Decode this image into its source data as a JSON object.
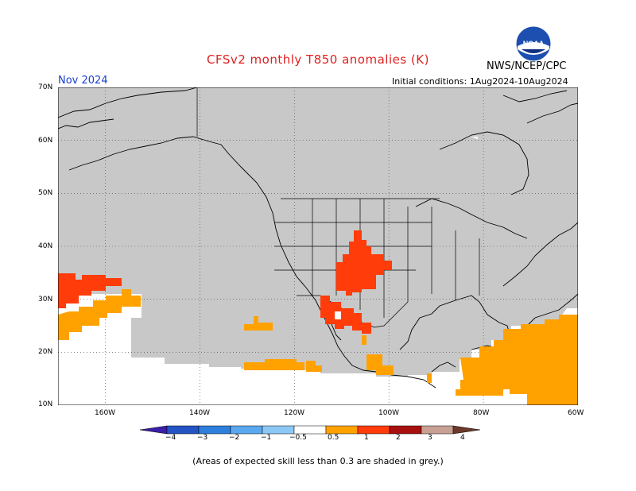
{
  "header": {
    "title": "CFSv2 monthly T850 anomalies (K)",
    "agency": "NWS/NCEP/CPC",
    "logo_text": "NOAA",
    "month": "Nov 2024",
    "initial_conditions": "Initial conditions: 1Aug2024-10Aug2024"
  },
  "map": {
    "lat_labels": [
      "70N",
      "60N",
      "50N",
      "40N",
      "30N",
      "20N",
      "10N"
    ],
    "lon_labels": [
      "160W",
      "140W",
      "120W",
      "100W",
      "80W",
      "60W"
    ],
    "lat_range": [
      10,
      70
    ],
    "lon_range": [
      -170,
      -60
    ],
    "grid_lats": [
      20,
      30,
      40,
      50,
      60
    ],
    "grid_lons": [
      -160,
      -140,
      -120,
      -100,
      -80
    ],
    "skill_mask_color": "#c8c8c8",
    "land_outline_color": "#000000"
  },
  "colorbar": {
    "labels": [
      "−4",
      "−3",
      "−2",
      "−1",
      "−0.5",
      "0.5",
      "1",
      "2",
      "3",
      "4"
    ],
    "colors": [
      "#3a1fa8",
      "#2453c4",
      "#2e7fdc",
      "#5aa8ee",
      "#8cc8f5",
      "#ffffff",
      "#ffa200",
      "#ff3c0a",
      "#a80f0f",
      "#c8a094",
      "#6b3a2a"
    ]
  },
  "footnote": "(Areas of expected skill less than 0.3 are shaded in grey.)",
  "colors": {
    "anomaly_05_1": "#ffa200",
    "anomaly_1_2": "#ff3c0a",
    "title_red": "#e02020",
    "month_blue": "#1a3fd0"
  }
}
